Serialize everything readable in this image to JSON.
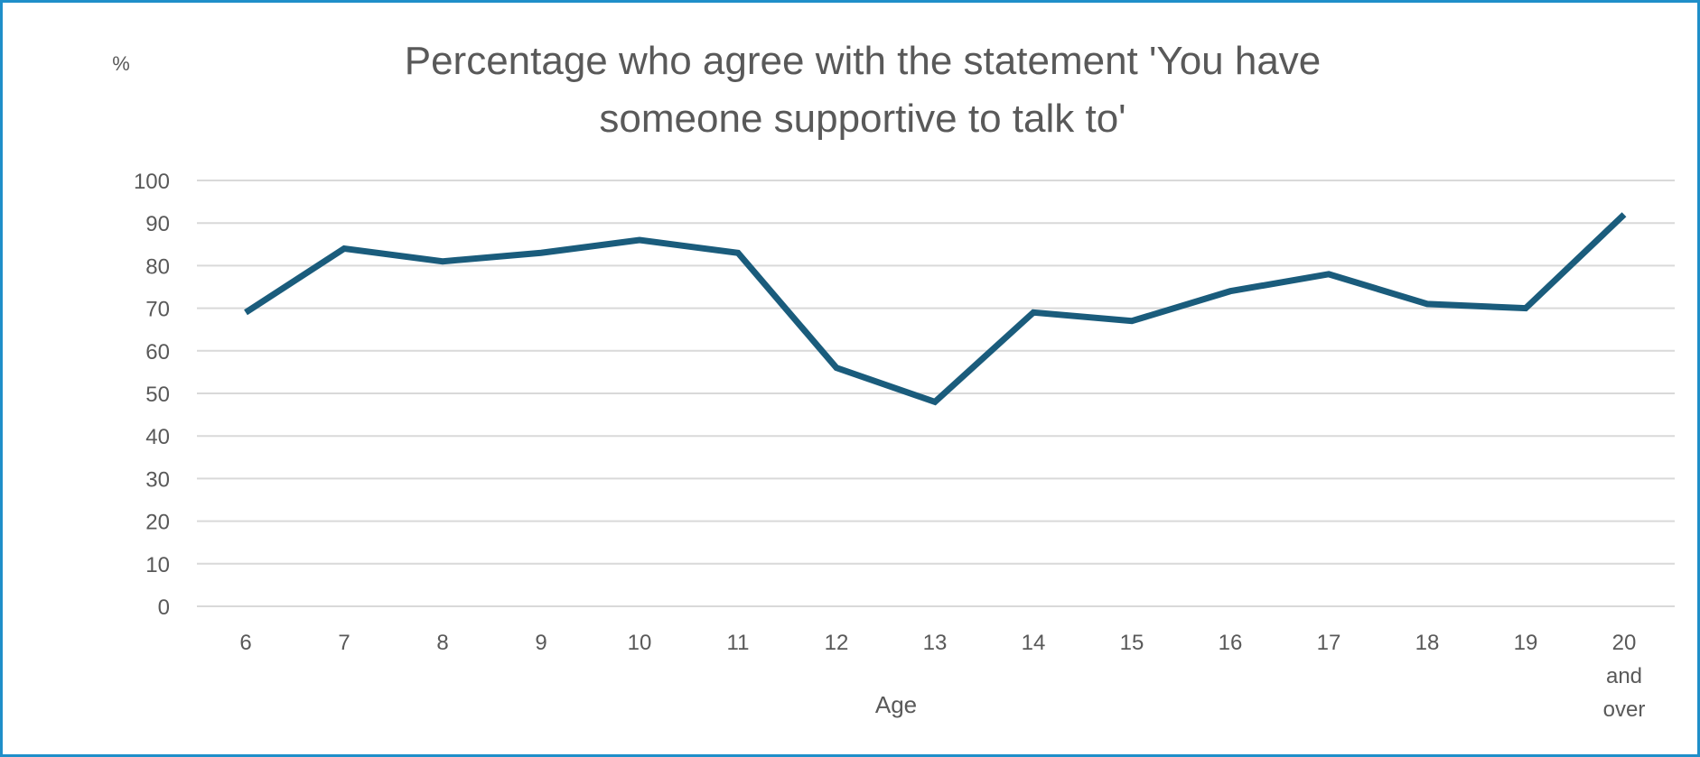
{
  "chart_data": {
    "type": "line",
    "title_lines": [
      "Percentage who agree with the statement 'You have",
      "someone supportive to talk to'"
    ],
    "y_unit_label": "%",
    "xlabel": "Age",
    "ylabel": "",
    "ylim": [
      0,
      100
    ],
    "y_ticks": [
      "0",
      "10",
      "20",
      "30",
      "40",
      "50",
      "60",
      "70",
      "80",
      "90",
      "100"
    ],
    "grid": true,
    "legend": "none",
    "categories": [
      [
        "6"
      ],
      [
        "7"
      ],
      [
        "8"
      ],
      [
        "9"
      ],
      [
        "10"
      ],
      [
        "11"
      ],
      [
        "12"
      ],
      [
        "13"
      ],
      [
        "14"
      ],
      [
        "15"
      ],
      [
        "16"
      ],
      [
        "17"
      ],
      [
        "18"
      ],
      [
        "19"
      ],
      [
        "20",
        "and",
        "over"
      ]
    ],
    "series": [
      {
        "color": "#1a5c7c",
        "values": [
          69,
          84,
          81,
          83,
          86,
          83,
          56,
          48,
          69,
          67,
          74,
          78,
          71,
          70,
          92
        ]
      }
    ]
  },
  "colors": {
    "frame_border": "#1f8fc9",
    "gridline": "#d9d9d9",
    "text": "#595959",
    "series": "#1a5c7c"
  }
}
